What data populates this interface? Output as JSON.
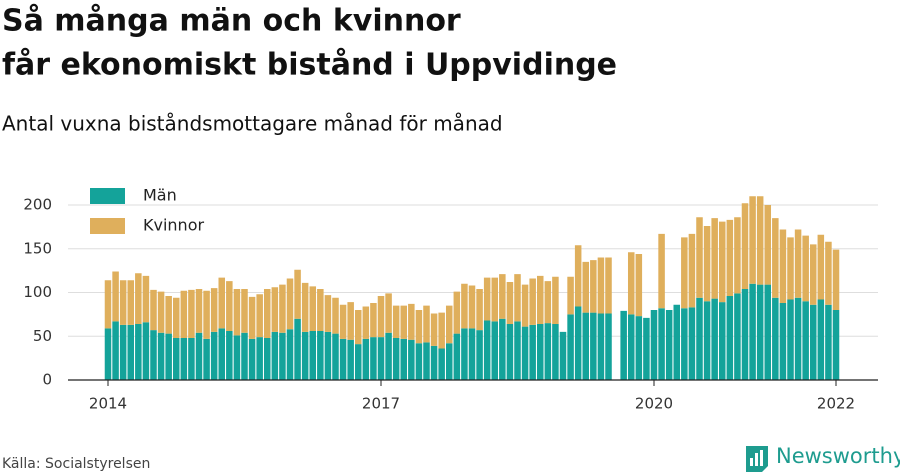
{
  "chart_data": {
    "type": "stacked_bar",
    "title": "Så många män och kvinnor får ekonomiskt bistånd i Uppvidinge",
    "subtitle": "Antal vuxna biståndsmottagare månad för månad",
    "source": "Källa: Socialstyrelsen",
    "logo": "Newsworthy",
    "categories": [
      "2014",
      null,
      null,
      null,
      null,
      null,
      null,
      null,
      null,
      null,
      null,
      null,
      null,
      null,
      null,
      null,
      null,
      null,
      null,
      null,
      null,
      null,
      null,
      null,
      null,
      null,
      null,
      null,
      null,
      null,
      null,
      null,
      null,
      null,
      null,
      null,
      "2017",
      null,
      null,
      null,
      null,
      null,
      null,
      null,
      null,
      null,
      null,
      null,
      null,
      null,
      null,
      null,
      null,
      null,
      null,
      null,
      null,
      null,
      null,
      null,
      null,
      null,
      null,
      null,
      null,
      null,
      null,
      null,
      null,
      null,
      null,
      null,
      "2020",
      null,
      null,
      null,
      null,
      null,
      null,
      null,
      null,
      null,
      null,
      null,
      null,
      null,
      null,
      null,
      null,
      null,
      null,
      null,
      null,
      null,
      null,
      null,
      "2022"
    ],
    "series": [
      {
        "name": "Män",
        "color": "#14a39a",
        "values": [
          59,
          67,
          63,
          63,
          64,
          66,
          57,
          54,
          53,
          48,
          48,
          48,
          54,
          47,
          55,
          59,
          56,
          51,
          54,
          47,
          49,
          48,
          55,
          54,
          58,
          70,
          55,
          56,
          56,
          55,
          53,
          47,
          46,
          41,
          47,
          49,
          49,
          54,
          48,
          47,
          46,
          42,
          43,
          39,
          36,
          42,
          53,
          59,
          59,
          57,
          68,
          67,
          70,
          64,
          67,
          61,
          63,
          64,
          65,
          64,
          55,
          75,
          84,
          77,
          77,
          76,
          76,
          null,
          79,
          75,
          73,
          71,
          80,
          82,
          80,
          86,
          82,
          83,
          94,
          90,
          93,
          89,
          96,
          99,
          104,
          110,
          109,
          109,
          94,
          88,
          92,
          94,
          90,
          86,
          92,
          86,
          80
        ]
      },
      {
        "name": "Kvinnor",
        "color": "#dfaf5c",
        "values": [
          55,
          57,
          51,
          51,
          58,
          53,
          46,
          47,
          43,
          46,
          54,
          55,
          50,
          55,
          50,
          58,
          57,
          53,
          50,
          48,
          49,
          56,
          51,
          55,
          58,
          56,
          56,
          51,
          48,
          42,
          41,
          39,
          43,
          39,
          37,
          39,
          47,
          45,
          37,
          38,
          41,
          38,
          42,
          37,
          41,
          43,
          48,
          51,
          49,
          47,
          49,
          50,
          51,
          48,
          54,
          48,
          53,
          55,
          48,
          54,
          null,
          43,
          70,
          58,
          60,
          64,
          64,
          null,
          null,
          71,
          71,
          null,
          null,
          85,
          null,
          null,
          81,
          84,
          92,
          86,
          92,
          92,
          87,
          87,
          98,
          100,
          101,
          91,
          91,
          84,
          71,
          78,
          75,
          69,
          74,
          72,
          69
        ]
      }
    ],
    "ylim": [
      0,
      200
    ],
    "yticks": [
      0,
      50,
      100,
      150,
      200
    ],
    "grid": true,
    "legend": "top-left"
  }
}
